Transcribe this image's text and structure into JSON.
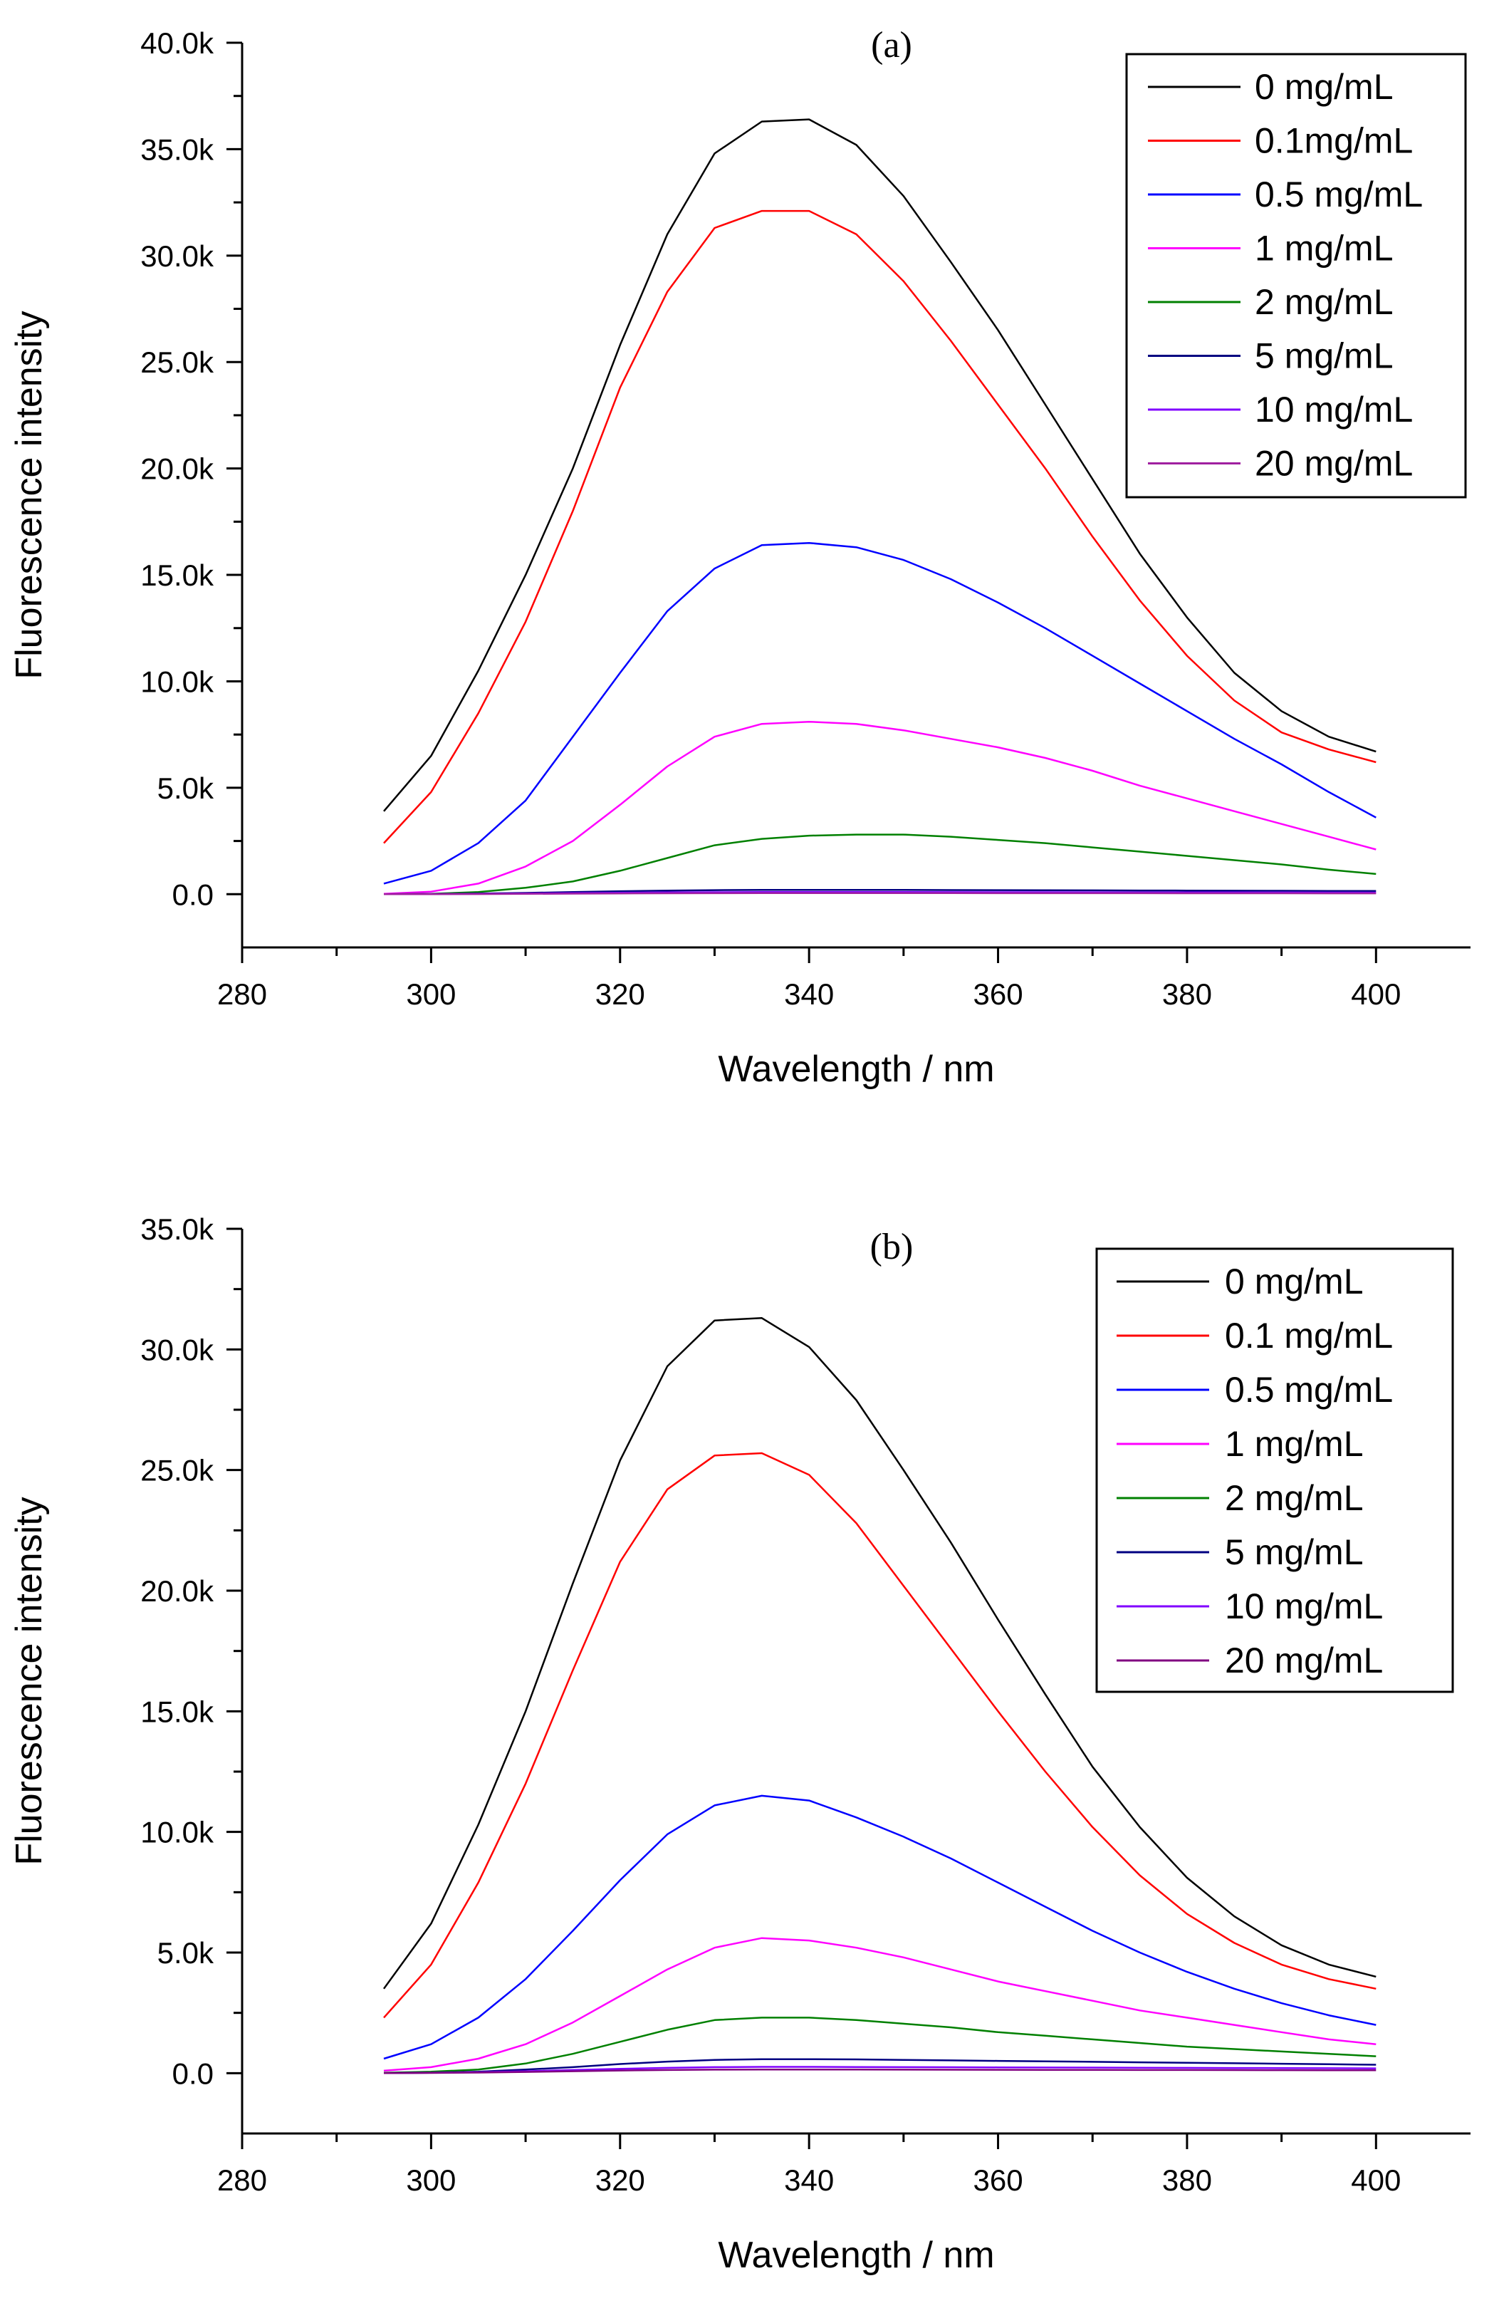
{
  "chart_data": [
    {
      "type": "line",
      "title": "(a)",
      "xlabel": "Wavelength / nm",
      "ylabel": "Fluorescence intensity",
      "xlim": [
        280,
        410
      ],
      "ylim": [
        -2500,
        40000
      ],
      "x_ticks": [
        280,
        300,
        320,
        340,
        360,
        380,
        400
      ],
      "x_tick_labels": [
        "280",
        "300",
        "320",
        "340",
        "360",
        "380",
        "400"
      ],
      "y_ticks": [
        0,
        5000,
        10000,
        15000,
        20000,
        25000,
        30000,
        35000,
        40000
      ],
      "y_tick_labels": [
        "0.0",
        "5.0k",
        "10.0k",
        "15.0k",
        "20.0k",
        "25.0k",
        "30.0k",
        "35.0k",
        "40.0k"
      ],
      "legend_position": "top-right",
      "x": [
        295,
        300,
        305,
        310,
        315,
        320,
        325,
        330,
        335,
        340,
        345,
        350,
        355,
        360,
        365,
        370,
        375,
        380,
        385,
        390,
        395,
        400
      ],
      "series": [
        {
          "name": "0 mg/mL",
          "color": "#000000",
          "values": [
            3900,
            6500,
            10500,
            15000,
            20000,
            25800,
            31000,
            34800,
            36300,
            36400,
            35200,
            32800,
            29700,
            26500,
            23000,
            19500,
            16000,
            13000,
            10400,
            8600,
            7400,
            6700
          ]
        },
        {
          "name": "0.1mg/mL",
          "color": "#ff0000",
          "values": [
            2400,
            4800,
            8500,
            12800,
            18000,
            23800,
            28300,
            31300,
            32100,
            32100,
            31000,
            28800,
            26000,
            23000,
            20000,
            16800,
            13800,
            11200,
            9100,
            7600,
            6800,
            6200
          ]
        },
        {
          "name": "0.5 mg/mL",
          "color": "#0000ff",
          "values": [
            500,
            1100,
            2400,
            4400,
            7400,
            10400,
            13300,
            15300,
            16400,
            16500,
            16300,
            15700,
            14800,
            13700,
            12500,
            11200,
            9900,
            8600,
            7300,
            6100,
            4800,
            3600
          ]
        },
        {
          "name": "1 mg/mL",
          "color": "#ff00ff",
          "values": [
            20,
            120,
            500,
            1300,
            2500,
            4200,
            6000,
            7400,
            8000,
            8100,
            8000,
            7700,
            7300,
            6900,
            6400,
            5800,
            5100,
            4500,
            3900,
            3300,
            2700,
            2100
          ]
        },
        {
          "name": "2 mg/mL",
          "color": "#008000",
          "values": [
            0,
            20,
            100,
            300,
            600,
            1100,
            1700,
            2300,
            2600,
            2750,
            2800,
            2800,
            2700,
            2550,
            2400,
            2200,
            2000,
            1800,
            1600,
            1400,
            1150,
            950
          ]
        },
        {
          "name": "5 mg/mL",
          "color": "#000080",
          "values": [
            0,
            10,
            30,
            60,
            100,
            140,
            170,
            190,
            200,
            200,
            200,
            200,
            195,
            190,
            185,
            180,
            175,
            170,
            165,
            160,
            155,
            150
          ]
        },
        {
          "name": "10 mg/mL",
          "color": "#8000ff",
          "values": [
            0,
            5,
            15,
            30,
            50,
            70,
            85,
            95,
            100,
            100,
            100,
            100,
            98,
            95,
            92,
            90,
            88,
            85,
            82,
            80,
            78,
            75
          ]
        },
        {
          "name": "20 mg/mL",
          "color": "#a020a0",
          "values": [
            0,
            3,
            8,
            15,
            25,
            35,
            42,
            48,
            50,
            50,
            50,
            50,
            49,
            48,
            47,
            46,
            45,
            44,
            43,
            42,
            41,
            40
          ]
        }
      ]
    },
    {
      "type": "line",
      "title": "(b)",
      "xlabel": "Wavelength / nm",
      "ylabel": "Fluorescence intensity",
      "xlim": [
        280,
        410
      ],
      "ylim": [
        -2500,
        35000
      ],
      "x_ticks": [
        280,
        300,
        320,
        340,
        360,
        380,
        400
      ],
      "x_tick_labels": [
        "280",
        "300",
        "320",
        "340",
        "360",
        "380",
        "400"
      ],
      "y_ticks": [
        0,
        5000,
        10000,
        15000,
        20000,
        25000,
        30000,
        35000
      ],
      "y_tick_labels": [
        "0.0",
        "5.0k",
        "10.0k",
        "15.0k",
        "20.0k",
        "25.0k",
        "30.0k",
        "35.0k"
      ],
      "legend_position": "top-right",
      "x": [
        295,
        300,
        305,
        310,
        315,
        320,
        325,
        330,
        335,
        340,
        345,
        350,
        355,
        360,
        365,
        370,
        375,
        380,
        385,
        390,
        395,
        400
      ],
      "series": [
        {
          "name": "0 mg/mL",
          "color": "#000000",
          "values": [
            3500,
            6200,
            10300,
            15000,
            20300,
            25400,
            29300,
            31200,
            31300,
            30100,
            27900,
            25000,
            22000,
            18800,
            15700,
            12700,
            10200,
            8100,
            6500,
            5300,
            4500,
            4000
          ]
        },
        {
          "name": "0.1 mg/mL",
          "color": "#ff0000",
          "values": [
            2300,
            4500,
            7900,
            12000,
            16700,
            21200,
            24200,
            25600,
            25700,
            24800,
            22800,
            20200,
            17600,
            15000,
            12500,
            10200,
            8200,
            6600,
            5400,
            4500,
            3900,
            3500
          ]
        },
        {
          "name": "0.5 mg/mL",
          "color": "#0000ff",
          "values": [
            600,
            1200,
            2300,
            3900,
            5900,
            8000,
            9900,
            11100,
            11500,
            11300,
            10600,
            9800,
            8900,
            7900,
            6900,
            5900,
            5000,
            4200,
            3500,
            2900,
            2400,
            2000
          ]
        },
        {
          "name": "1 mg/mL",
          "color": "#ff00ff",
          "values": [
            100,
            250,
            600,
            1200,
            2100,
            3200,
            4300,
            5200,
            5600,
            5500,
            5200,
            4800,
            4300,
            3800,
            3400,
            3000,
            2600,
            2300,
            2000,
            1700,
            1400,
            1200
          ]
        },
        {
          "name": "2 mg/mL",
          "color": "#008000",
          "values": [
            20,
            60,
            150,
            400,
            800,
            1300,
            1800,
            2200,
            2300,
            2300,
            2200,
            2050,
            1900,
            1700,
            1550,
            1400,
            1250,
            1100,
            1000,
            900,
            800,
            700
          ]
        },
        {
          "name": "5 mg/mL",
          "color": "#000080",
          "values": [
            0,
            20,
            60,
            150,
            250,
            380,
            480,
            550,
            580,
            580,
            570,
            550,
            530,
            510,
            490,
            470,
            450,
            430,
            410,
            390,
            370,
            350
          ]
        },
        {
          "name": "10 mg/mL",
          "color": "#8000ff",
          "values": [
            0,
            15,
            40,
            80,
            130,
            180,
            220,
            250,
            260,
            260,
            255,
            250,
            245,
            240,
            235,
            230,
            225,
            220,
            215,
            210,
            205,
            200
          ]
        },
        {
          "name": "20 mg/mL",
          "color": "#800080",
          "values": [
            0,
            10,
            25,
            50,
            80,
            110,
            130,
            145,
            150,
            150,
            148,
            145,
            142,
            140,
            137,
            135,
            132,
            130,
            127,
            125,
            122,
            120
          ]
        }
      ]
    }
  ]
}
